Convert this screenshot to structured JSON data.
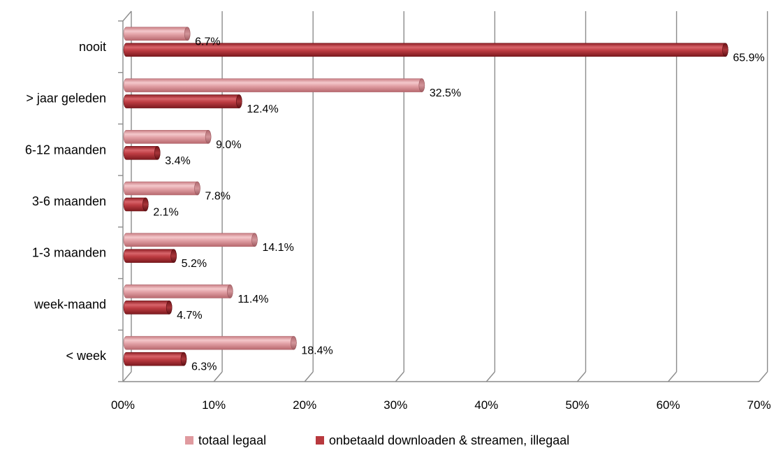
{
  "chart_data": {
    "type": "bar",
    "orientation": "horizontal",
    "style": "3d-cylinder",
    "categories": [
      "nooit",
      "> jaar geleden",
      "6-12 maanden",
      "3-6 maanden",
      "1-3 maanden",
      "week-maand",
      "< week"
    ],
    "series": [
      {
        "name": "totaal legaal",
        "color": "#e09a9f",
        "values": [
          6.7,
          32.5,
          9.0,
          7.8,
          14.1,
          11.4,
          18.4
        ],
        "labels": [
          "6.7%",
          "32.5%",
          "9.0%",
          "7.8%",
          "14.1%",
          "11.4%",
          "18.4%"
        ]
      },
      {
        "name": "onbetaald downloaden & streamen, illegaal",
        "color": "#b8393e",
        "values": [
          65.9,
          12.4,
          3.4,
          2.1,
          5.2,
          4.7,
          6.3
        ],
        "labels": [
          "65.9%",
          "12.4%",
          "3.4%",
          "2.1%",
          "5.2%",
          "4.7%",
          "6.3%"
        ]
      }
    ],
    "xlim": [
      0,
      70
    ],
    "xticks": [
      0,
      10,
      20,
      30,
      40,
      50,
      60,
      70
    ],
    "xtick_labels": [
      "00%",
      "10%",
      "20%",
      "30%",
      "40%",
      "50%",
      "60%",
      "70%"
    ],
    "grid": true,
    "legend_position": "bottom"
  }
}
